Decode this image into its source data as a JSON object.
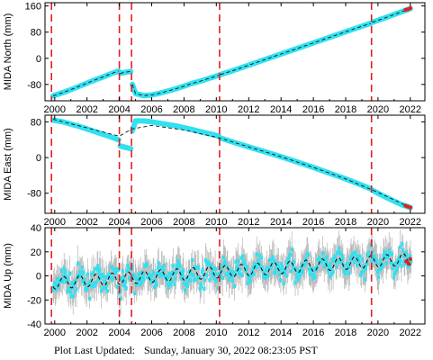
{
  "footer": {
    "label": "Plot Last Updated:",
    "value": "Sunday, January 30, 2022 08:23:05 PST"
  },
  "colors": {
    "data": "#33e0f0",
    "errorbar": "#b4b4b4",
    "model": "#000000",
    "offset": "#e02020",
    "recent": "#e02020",
    "frame": "#000000"
  },
  "chart_data": [
    {
      "type": "scatter",
      "ylabel": "MIDA North (mm)",
      "xlim": [
        1999.4,
        2022.9
      ],
      "ylim": [
        -130,
        170
      ],
      "xticks": [
        2000,
        2002,
        2004,
        2006,
        2008,
        2010,
        2012,
        2014,
        2016,
        2018,
        2020,
        2022
      ],
      "yticks": [
        -80,
        0,
        80,
        160
      ],
      "offset_epochs": [
        1999.8,
        2004.0,
        2004.75,
        2010.2,
        2019.6
      ],
      "series": [
        {
          "x": [
            1999.9,
            2000.5,
            2001.0,
            2001.5,
            2002.0,
            2002.5,
            2003.0,
            2003.5,
            2003.95
          ],
          "values": [
            -115,
            -105,
            -96,
            -86,
            -76,
            -66,
            -57,
            -47,
            -39
          ]
        },
        {
          "x": [
            2004.05,
            2004.35,
            2004.7
          ],
          "values": [
            -46,
            -43,
            -40
          ]
        },
        {
          "x": [
            2004.8,
            2005.0,
            2005.5,
            2006.0,
            2006.5,
            2007.0,
            2007.5,
            2008.0,
            2008.5,
            2009.0,
            2009.5,
            2010.15
          ],
          "values": [
            -80,
            -108,
            -114,
            -112,
            -107,
            -100,
            -93,
            -85,
            -77,
            -70,
            -62,
            -52
          ]
        },
        {
          "x": [
            2010.25,
            2011.0,
            2012.0,
            2013.0,
            2014.0,
            2015.0,
            2016.0,
            2017.0,
            2018.0,
            2019.0,
            2019.55
          ],
          "values": [
            -50,
            -38,
            -21,
            -4,
            13,
            30,
            47,
            64,
            81,
            98,
            107
          ]
        },
        {
          "x": [
            2019.65,
            2020.0,
            2020.5,
            2021.0,
            2021.5,
            2022.0
          ],
          "values": [
            110,
            116,
            125,
            134,
            143,
            152
          ]
        }
      ],
      "recent": {
        "x": [
          2021.7,
          2021.85,
          2022.0
        ],
        "values": [
          148,
          150,
          153
        ]
      }
    },
    {
      "type": "scatter",
      "ylabel": "MIDA East (mm)",
      "xlim": [
        1999.4,
        2022.9
      ],
      "ylim": [
        -125,
        95
      ],
      "xticks": [
        2000,
        2002,
        2004,
        2006,
        2008,
        2010,
        2012,
        2014,
        2016,
        2018,
        2020,
        2022
      ],
      "yticks": [
        -80,
        0,
        80
      ],
      "offset_epochs": [
        1999.8,
        2004.0,
        2004.75,
        2010.2,
        2019.6
      ],
      "series": [
        {
          "x": [
            1999.9,
            2000.5,
            2001.0,
            2001.5,
            2002.0,
            2002.5,
            2003.0,
            2003.5,
            2003.95
          ],
          "values": [
            84,
            80,
            75,
            70,
            64,
            58,
            52,
            46,
            40
          ]
        },
        {
          "x": [
            2004.05,
            2004.35,
            2004.7
          ],
          "values": [
            26,
            23,
            20
          ]
        },
        {
          "x": [
            2004.8,
            2005.0,
            2005.5,
            2006.0,
            2006.5,
            2007.0,
            2007.5,
            2008.0,
            2008.5,
            2009.0,
            2009.5,
            2010.15
          ],
          "values": [
            60,
            82,
            82,
            80,
            77,
            74,
            71,
            67,
            63,
            58,
            54,
            48
          ]
        },
        {
          "x": [
            2010.25,
            2011.0,
            2012.0,
            2013.0,
            2014.0,
            2015.0,
            2016.0,
            2017.0,
            2018.0,
            2019.0,
            2019.55
          ],
          "values": [
            44,
            35,
            24,
            13,
            2,
            -10,
            -22,
            -35,
            -48,
            -62,
            -70
          ]
        },
        {
          "x": [
            2019.65,
            2020.0,
            2020.5,
            2021.0,
            2021.5,
            2022.0
          ],
          "values": [
            -73,
            -80,
            -89,
            -98,
            -106,
            -112
          ]
        }
      ],
      "model": {
        "x": [
          1999.9,
          2004.0,
          2004.75,
          2006.0,
          2008.0,
          2010.2,
          2012.0,
          2014.0,
          2016.0,
          2018.0,
          2020.0,
          2022.0
        ],
        "values": [
          86,
          48,
          64,
          72,
          62,
          44,
          24,
          2,
          -22,
          -48,
          -78,
          -112
        ]
      },
      "recent": {
        "x": [
          2021.7,
          2021.85,
          2022.0
        ],
        "values": [
          -108,
          -110,
          -112
        ]
      }
    },
    {
      "type": "scatter",
      "ylabel": "MIDA Up (mm)",
      "xlim": [
        1999.4,
        2022.9
      ],
      "ylim": [
        -40,
        40
      ],
      "xticks": [
        2000,
        2002,
        2004,
        2006,
        2008,
        2010,
        2012,
        2014,
        2016,
        2018,
        2020,
        2022
      ],
      "yticks": [
        -40,
        -20,
        0,
        20,
        40
      ],
      "offset_epochs": [
        1999.8,
        2004.0,
        2004.75,
        2010.2,
        2019.6
      ],
      "x_start": 1999.9,
      "x_end": 2022.05,
      "trend": {
        "start": -6,
        "end": 14
      },
      "seasonal_amplitude": 5,
      "scatter_amplitude": 9,
      "error_half_width": 12,
      "recent": {
        "x": [
          2021.75,
          2021.9,
          2022.0
        ],
        "values": [
          12,
          10,
          14
        ]
      }
    }
  ]
}
